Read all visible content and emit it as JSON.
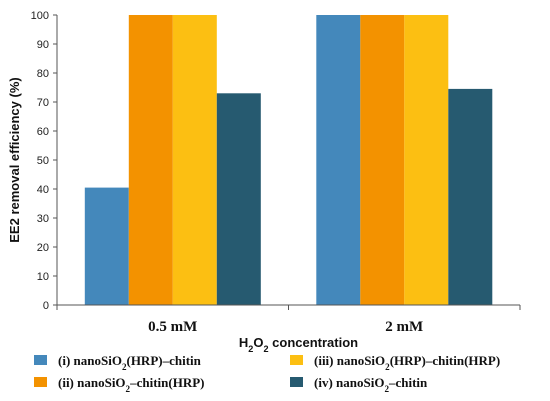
{
  "chart_data": {
    "type": "bar",
    "categories": [
      "0.5 mM",
      "2 mM"
    ],
    "series": [
      {
        "name": "(i) nanoSiO2(HRP)–chitin",
        "legend_parts": [
          [
            "(i) nanoSiO",
            ""
          ],
          [
            "2",
            "sub"
          ],
          [
            "(HRP)–chitin",
            ""
          ]
        ],
        "color": "#4488bb",
        "values": [
          40.5,
          100
        ]
      },
      {
        "name": "(ii) nanoSiO2–chitin(HRP)",
        "legend_parts": [
          [
            "(ii) nanoSiO",
            ""
          ],
          [
            "2",
            "sub"
          ],
          [
            "–chitin(HRP)",
            ""
          ]
        ],
        "color": "#f39200",
        "values": [
          100,
          100
        ]
      },
      {
        "name": "(iii) nanoSiO2(HRP)–chitin(HRP)",
        "legend_parts": [
          [
            "(iii) nanoSiO",
            ""
          ],
          [
            "2",
            "sub"
          ],
          [
            "(HRP)–chitin(HRP)",
            ""
          ]
        ],
        "color": "#fcbf12",
        "values": [
          100,
          100
        ]
      },
      {
        "name": "(iv) nanoSiO2–chitin",
        "legend_parts": [
          [
            "(iv) nanoSiO",
            ""
          ],
          [
            "2",
            "sub"
          ],
          [
            "–chitin",
            ""
          ]
        ],
        "color": "#265a70",
        "values": [
          73,
          74.5
        ]
      }
    ],
    "title": "",
    "xlabel": "H2O2 concentration",
    "xlabel_parts": [
      [
        "H",
        ""
      ],
      [
        "2",
        "sub"
      ],
      [
        "O",
        ""
      ],
      [
        "2",
        "sub"
      ],
      [
        " concentration",
        ""
      ]
    ],
    "ylabel": "EE2 removal  efficiency (%)",
    "ylim": [
      0,
      100
    ],
    "yticks": [
      0,
      10,
      20,
      30,
      40,
      50,
      60,
      70,
      80,
      90,
      100
    ],
    "grid": false,
    "legend_position": "bottom"
  }
}
